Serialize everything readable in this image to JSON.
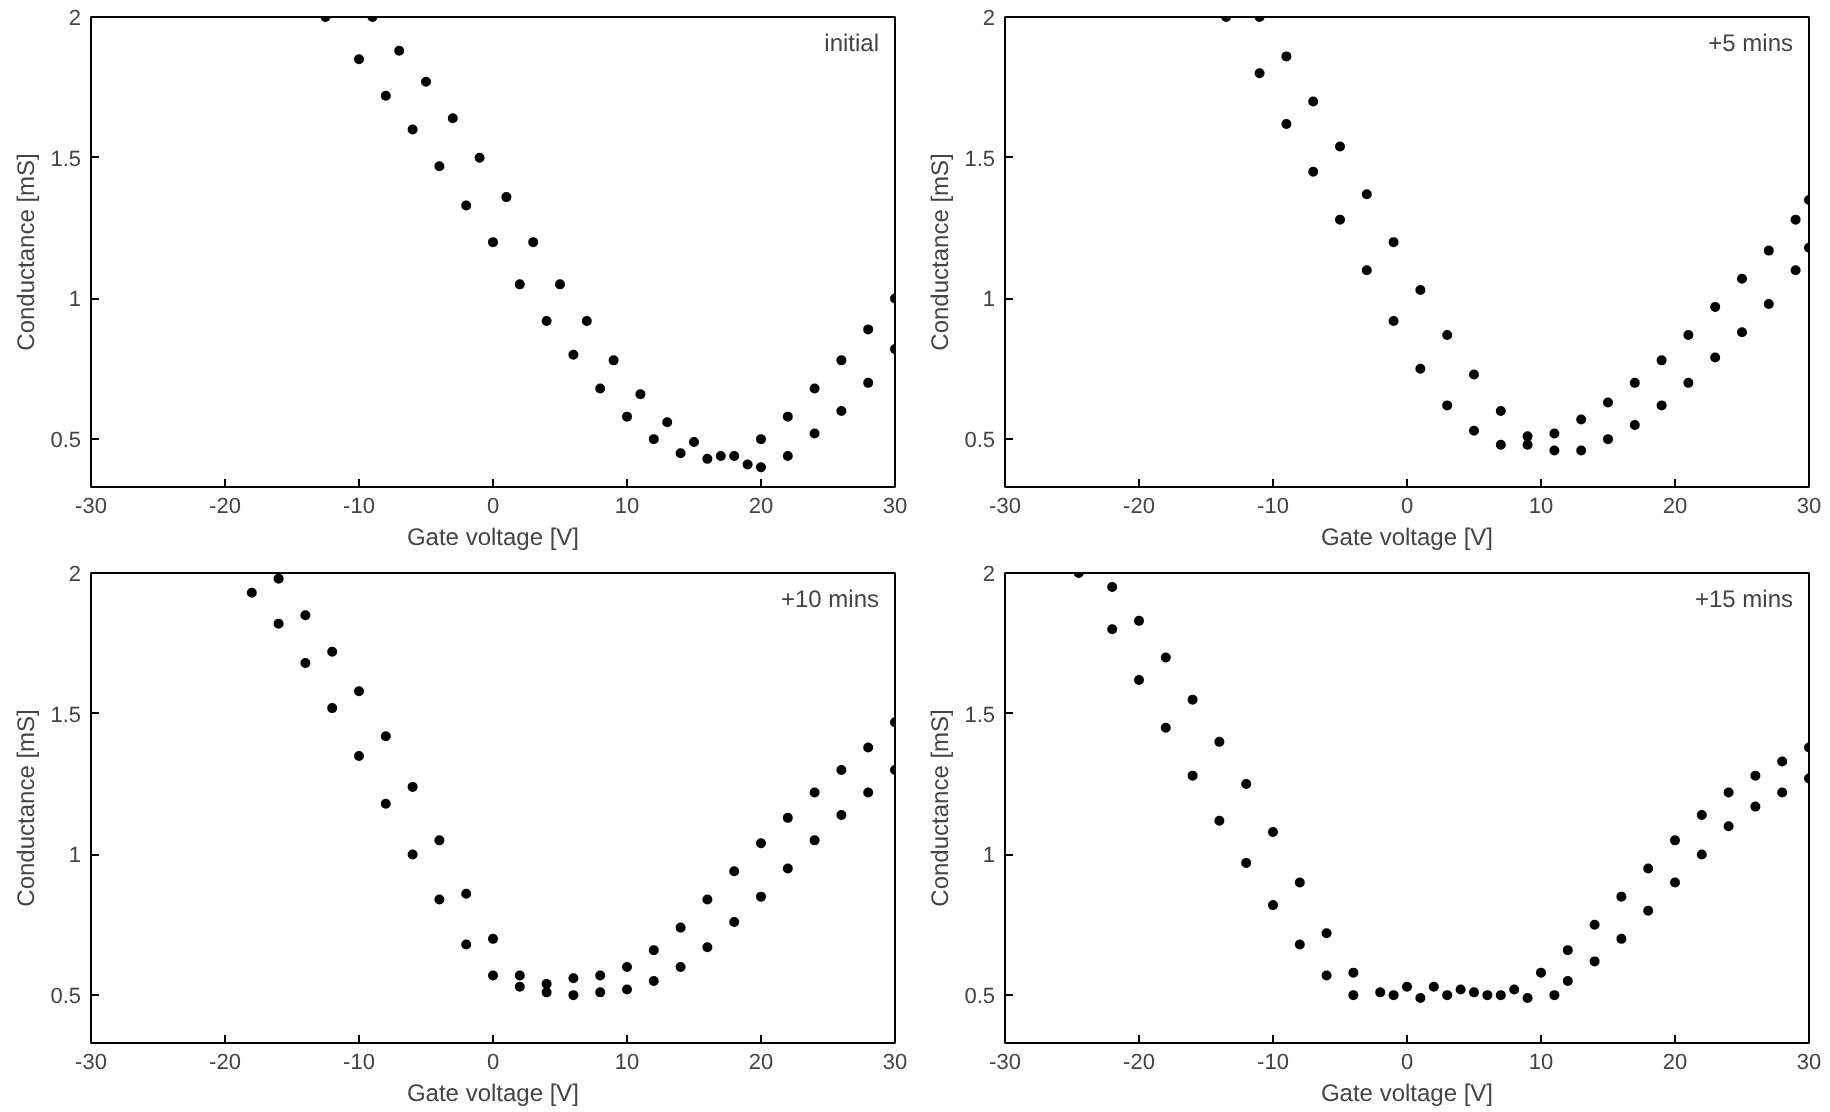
{
  "chart_data": [
    {
      "type": "scatter",
      "xlabel": "Gate voltage [V]",
      "ylabel": "Conductance [mS]",
      "annotations": [
        "initial"
      ],
      "xlim": [
        -30,
        30
      ],
      "ylim": [
        0.33,
        2
      ],
      "xticks": [
        -30,
        -20,
        -10,
        0,
        10,
        20,
        30
      ],
      "yticks": [
        0.5,
        1,
        1.5,
        2
      ],
      "grid": false,
      "marker": "circle",
      "series": [
        {
          "color": "#000000",
          "x": [
            -12.5,
            -10,
            -8,
            -6,
            -4,
            -2,
            0,
            2,
            4,
            6,
            8,
            10,
            12,
            14,
            16,
            18,
            20,
            22,
            24,
            26,
            28,
            30
          ],
          "values": [
            2.0,
            1.85,
            1.72,
            1.6,
            1.47,
            1.33,
            1.2,
            1.05,
            0.92,
            0.8,
            0.68,
            0.58,
            0.5,
            0.45,
            0.43,
            0.44,
            0.5,
            0.58,
            0.68,
            0.78,
            0.89,
            1.0
          ]
        },
        {
          "color": "#000000",
          "x": [
            -9,
            -7,
            -5,
            -3,
            -1,
            1,
            3,
            5,
            7,
            9,
            11,
            13,
            15,
            17,
            19,
            20,
            22,
            24,
            26,
            28,
            30
          ],
          "values": [
            2.0,
            1.88,
            1.77,
            1.64,
            1.5,
            1.36,
            1.2,
            1.05,
            0.92,
            0.78,
            0.66,
            0.56,
            0.49,
            0.44,
            0.41,
            0.4,
            0.44,
            0.52,
            0.6,
            0.7,
            0.82
          ]
        }
      ]
    },
    {
      "type": "scatter",
      "xlabel": "Gate voltage [V]",
      "ylabel": "Conductance [mS]",
      "annotations": [
        "+5 mins"
      ],
      "xlim": [
        -30,
        30
      ],
      "ylim": [
        0.33,
        2
      ],
      "xticks": [
        -30,
        -20,
        -10,
        0,
        10,
        20,
        30
      ],
      "yticks": [
        0.5,
        1,
        1.5,
        2
      ],
      "grid": false,
      "marker": "circle",
      "series": [
        {
          "color": "#000000",
          "x": [
            -13.5,
            -11,
            -9,
            -7,
            -5,
            -3,
            -1,
            1,
            3,
            5,
            7,
            9,
            11,
            13,
            15,
            17,
            19,
            21,
            23,
            25,
            27,
            29,
            30
          ],
          "values": [
            2.0,
            1.8,
            1.62,
            1.45,
            1.28,
            1.1,
            0.92,
            0.75,
            0.62,
            0.53,
            0.48,
            0.48,
            0.52,
            0.57,
            0.63,
            0.7,
            0.78,
            0.87,
            0.97,
            1.07,
            1.17,
            1.28,
            1.35
          ]
        },
        {
          "color": "#000000",
          "x": [
            -11,
            -9,
            -7,
            -5,
            -3,
            -1,
            1,
            3,
            5,
            7,
            9,
            11,
            13,
            15,
            17,
            19,
            21,
            23,
            25,
            27,
            29,
            30
          ],
          "values": [
            2.0,
            1.86,
            1.7,
            1.54,
            1.37,
            1.2,
            1.03,
            0.87,
            0.73,
            0.6,
            0.51,
            0.46,
            0.46,
            0.5,
            0.55,
            0.62,
            0.7,
            0.79,
            0.88,
            0.98,
            1.1,
            1.18
          ]
        }
      ]
    },
    {
      "type": "scatter",
      "xlabel": "Gate voltage [V]",
      "ylabel": "Conductance [mS]",
      "annotations": [
        "+10 mins"
      ],
      "xlim": [
        -30,
        30
      ],
      "ylim": [
        0.33,
        2
      ],
      "xticks": [
        -30,
        -20,
        -10,
        0,
        10,
        20,
        30
      ],
      "yticks": [
        0.5,
        1,
        1.5,
        2
      ],
      "grid": false,
      "marker": "circle",
      "series": [
        {
          "color": "#000000",
          "x": [
            -18,
            -16,
            -14,
            -12,
            -10,
            -8,
            -6,
            -4,
            -2,
            0,
            2,
            4,
            6,
            8,
            10,
            12,
            14,
            16,
            18,
            20,
            22,
            24,
            26,
            28,
            30
          ],
          "values": [
            1.93,
            1.82,
            1.68,
            1.52,
            1.35,
            1.18,
            1.0,
            0.84,
            0.68,
            0.57,
            0.53,
            0.54,
            0.56,
            0.57,
            0.6,
            0.66,
            0.74,
            0.84,
            0.94,
            1.04,
            1.13,
            1.22,
            1.3,
            1.38,
            1.47
          ]
        },
        {
          "color": "#000000",
          "x": [
            -16,
            -14,
            -12,
            -10,
            -8,
            -6,
            -4,
            -2,
            0,
            2,
            4,
            6,
            8,
            10,
            12,
            14,
            16,
            18,
            20,
            22,
            24,
            26,
            28,
            30
          ],
          "values": [
            1.98,
            1.85,
            1.72,
            1.58,
            1.42,
            1.24,
            1.05,
            0.86,
            0.7,
            0.57,
            0.51,
            0.5,
            0.51,
            0.52,
            0.55,
            0.6,
            0.67,
            0.76,
            0.85,
            0.95,
            1.05,
            1.14,
            1.22,
            1.3
          ]
        }
      ]
    },
    {
      "type": "scatter",
      "xlabel": "Gate voltage [V]",
      "ylabel": "Conductance [mS]",
      "annotations": [
        "+15 mins"
      ],
      "xlim": [
        -30,
        30
      ],
      "ylim": [
        0.33,
        2
      ],
      "xticks": [
        -30,
        -20,
        -10,
        0,
        10,
        20,
        30
      ],
      "yticks": [
        0.5,
        1,
        1.5,
        2
      ],
      "grid": false,
      "marker": "circle",
      "series": [
        {
          "color": "#000000",
          "x": [
            -24.5,
            -22,
            -20,
            -18,
            -16,
            -14,
            -12,
            -10,
            -8,
            -6,
            -4,
            -2,
            0,
            2,
            4,
            6,
            8,
            10,
            12,
            14,
            16,
            18,
            20,
            22,
            24,
            26,
            28,
            30
          ],
          "values": [
            2.0,
            1.8,
            1.62,
            1.45,
            1.28,
            1.12,
            0.97,
            0.82,
            0.68,
            0.57,
            0.5,
            0.51,
            0.53,
            0.53,
            0.52,
            0.5,
            0.52,
            0.58,
            0.66,
            0.75,
            0.85,
            0.95,
            1.05,
            1.14,
            1.22,
            1.28,
            1.33,
            1.38
          ]
        },
        {
          "color": "#000000",
          "x": [
            -22,
            -20,
            -18,
            -16,
            -14,
            -12,
            -10,
            -8,
            -6,
            -4,
            -1,
            1,
            3,
            5,
            7,
            9,
            11,
            12,
            14,
            16,
            18,
            20,
            22,
            24,
            26,
            28,
            30
          ],
          "values": [
            1.95,
            1.83,
            1.7,
            1.55,
            1.4,
            1.25,
            1.08,
            0.9,
            0.72,
            0.58,
            0.5,
            0.49,
            0.5,
            0.51,
            0.5,
            0.49,
            0.5,
            0.55,
            0.62,
            0.7,
            0.8,
            0.9,
            1.0,
            1.1,
            1.17,
            1.22,
            1.27
          ]
        }
      ]
    }
  ]
}
